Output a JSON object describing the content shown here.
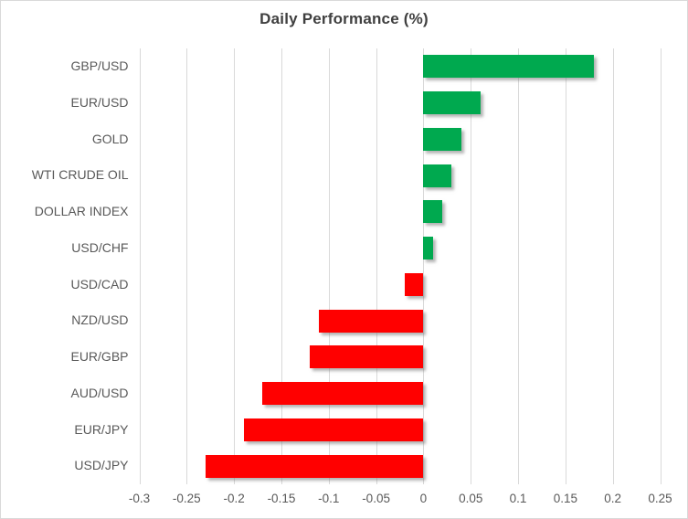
{
  "chart_data": {
    "type": "bar",
    "orientation": "horizontal",
    "title": "Daily Performance (%)",
    "categories": [
      "GBP/USD",
      "EUR/USD",
      "GOLD",
      "WTI CRUDE OIL",
      "DOLLAR INDEX",
      "USD/CHF",
      "USD/CAD",
      "NZD/USD",
      "EUR/GBP",
      "AUD/USD",
      "EUR/JPY",
      "USD/JPY"
    ],
    "values": [
      0.18,
      0.06,
      0.04,
      0.03,
      0.02,
      0.01,
      -0.02,
      -0.11,
      -0.12,
      -0.17,
      -0.19,
      -0.23
    ],
    "xlabel": "",
    "ylabel": "",
    "xlim": [
      -0.3,
      0.25
    ],
    "x_ticks": [
      "-0.3",
      "-0.25",
      "-0.2",
      "-0.15",
      "-0.1",
      "-0.05",
      "0",
      "0.05",
      "0.1",
      "0.15",
      "0.2",
      "0.25"
    ],
    "grid": true,
    "legend": "none",
    "positive_color": "#00a94f",
    "negative_color": "#ff0000",
    "gridline_color": "#d9d9d9",
    "title_color": "#3f3f3f",
    "label_color": "#595959"
  }
}
